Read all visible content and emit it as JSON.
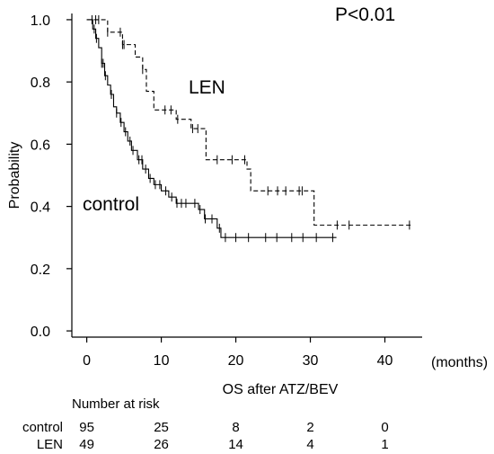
{
  "chart_data": {
    "type": "line",
    "annotations": {
      "p_value": "P<0.01"
    },
    "xlabel": "OS after ATZ/BEV",
    "x_unit_label": "(months)",
    "ylabel": "Probability",
    "xlim": [
      -2,
      45
    ],
    "ylim": [
      -0.02,
      1.02
    ],
    "x_ticks": [
      0,
      10,
      20,
      30,
      40
    ],
    "x_tick_labels": [
      "0",
      "10",
      "20",
      "30",
      "40"
    ],
    "y_ticks": [
      0.0,
      0.2,
      0.4,
      0.6,
      0.8,
      1.0
    ],
    "y_tick_labels": [
      "0.0",
      "0.2",
      "0.4",
      "0.6",
      "0.8",
      "1.0"
    ],
    "grid": false,
    "series": [
      {
        "name": "control",
        "line_style": "solid",
        "steps": [
          [
            0,
            1.0
          ],
          [
            0.8,
            0.97
          ],
          [
            1.2,
            0.94
          ],
          [
            1.6,
            0.91
          ],
          [
            2.0,
            0.86
          ],
          [
            2.4,
            0.82
          ],
          [
            2.8,
            0.79
          ],
          [
            3.2,
            0.76
          ],
          [
            3.6,
            0.72
          ],
          [
            4.0,
            0.7
          ],
          [
            4.5,
            0.67
          ],
          [
            5.0,
            0.64
          ],
          [
            5.5,
            0.61
          ],
          [
            6.0,
            0.58
          ],
          [
            6.8,
            0.55
          ],
          [
            7.5,
            0.52
          ],
          [
            8.3,
            0.49
          ],
          [
            9.0,
            0.47
          ],
          [
            10.0,
            0.45
          ],
          [
            11.0,
            0.43
          ],
          [
            12.0,
            0.41
          ],
          [
            15.0,
            0.39
          ],
          [
            15.8,
            0.36
          ],
          [
            17.5,
            0.33
          ],
          [
            18.0,
            0.3
          ],
          [
            33.5,
            0.3
          ]
        ],
        "censor_times": [
          1.0,
          1.3,
          2.0,
          2.2,
          2.5,
          3.3,
          4.0,
          4.6,
          5.2,
          5.8,
          6.2,
          7.0,
          7.4,
          7.9,
          8.5,
          9.2,
          9.8,
          10.6,
          11.4,
          12.1,
          12.7,
          13.3,
          14.5,
          15.2,
          15.9,
          16.8,
          17.8,
          18.6,
          20.0,
          21.7,
          24.0,
          25.5,
          27.5,
          29.0,
          30.8,
          33.0
        ]
      },
      {
        "name": "LEN",
        "line_style": "dashed",
        "steps": [
          [
            0,
            1.0
          ],
          [
            2.8,
            0.96
          ],
          [
            4.8,
            0.92
          ],
          [
            6.5,
            0.88
          ],
          [
            7.5,
            0.84
          ],
          [
            8.0,
            0.77
          ],
          [
            9.0,
            0.71
          ],
          [
            12.0,
            0.68
          ],
          [
            14.0,
            0.65
          ],
          [
            16.0,
            0.55
          ],
          [
            21.5,
            0.52
          ],
          [
            22.0,
            0.45
          ],
          [
            30.5,
            0.34
          ],
          [
            43.5,
            0.34
          ]
        ],
        "censor_times": [
          0.7,
          1.2,
          1.6,
          2.8,
          4.5,
          4.8,
          5.0,
          7.5,
          10.5,
          11.3,
          12.2,
          14.2,
          14.9,
          17.5,
          19.5,
          21.2,
          24.3,
          25.6,
          26.7,
          28.5,
          28.9,
          33.6,
          35.2,
          43.3
        ]
      }
    ]
  },
  "risk_table": {
    "title": "Number at risk",
    "rows": [
      {
        "label": "control",
        "values": [
          "95",
          "25",
          "8",
          "2",
          "0"
        ]
      },
      {
        "label": "LEN",
        "values": [
          "49",
          "26",
          "14",
          "4",
          "1"
        ]
      }
    ]
  },
  "colors": {
    "line": "#000000",
    "background": "#ffffff"
  }
}
